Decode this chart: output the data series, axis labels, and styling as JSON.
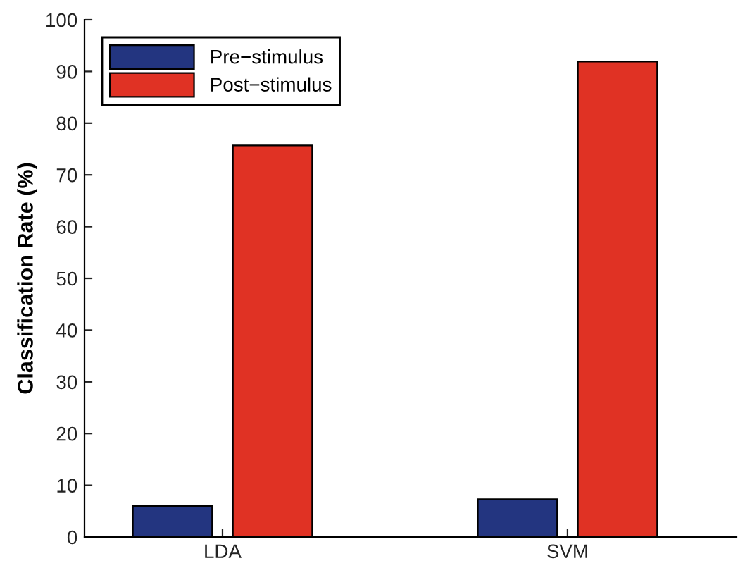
{
  "chart_data": {
    "type": "bar",
    "ylabel": "Classification Rate (%)",
    "categories": [
      "LDA",
      "SVM"
    ],
    "series": [
      {
        "name": "Pre−stimulus",
        "color": "#233580",
        "values": [
          6.0,
          7.3
        ]
      },
      {
        "name": "Post−stimulus",
        "color": "#e03224",
        "values": [
          75.7,
          91.9
        ]
      }
    ],
    "ylim": [
      0,
      100
    ],
    "yticks": [
      0,
      10,
      20,
      30,
      40,
      50,
      60,
      70,
      80,
      90,
      100
    ],
    "grid": false,
    "legend": "top left"
  }
}
